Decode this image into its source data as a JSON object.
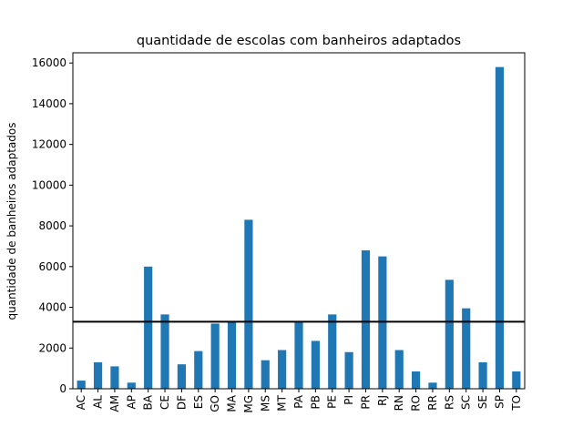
{
  "chart_data": {
    "type": "bar",
    "title": "quantidade de escolas com banheiros adaptados",
    "xlabel": "",
    "ylabel": "quantidade de banheiros adaptados",
    "categories": [
      "AC",
      "AL",
      "AM",
      "AP",
      "BA",
      "CE",
      "DF",
      "ES",
      "GO",
      "MA",
      "MG",
      "MS",
      "MT",
      "PA",
      "PB",
      "PE",
      "PI",
      "PR",
      "RJ",
      "RN",
      "RO",
      "RR",
      "RS",
      "SC",
      "SE",
      "SP",
      "TO"
    ],
    "values": [
      400,
      1300,
      1100,
      300,
      6000,
      3650,
      1200,
      1850,
      3200,
      3300,
      8300,
      1400,
      1900,
      3300,
      2350,
      3650,
      1800,
      6800,
      6500,
      1900,
      850,
      300,
      5350,
      3950,
      1300,
      15800,
      850
    ],
    "ylim": [
      0,
      16500
    ],
    "yticks": [
      0,
      2000,
      4000,
      6000,
      8000,
      10000,
      12000,
      14000,
      16000
    ],
    "reference_line": 3290,
    "bar_color": "#1f77b4",
    "grid": false,
    "legend": "none"
  }
}
